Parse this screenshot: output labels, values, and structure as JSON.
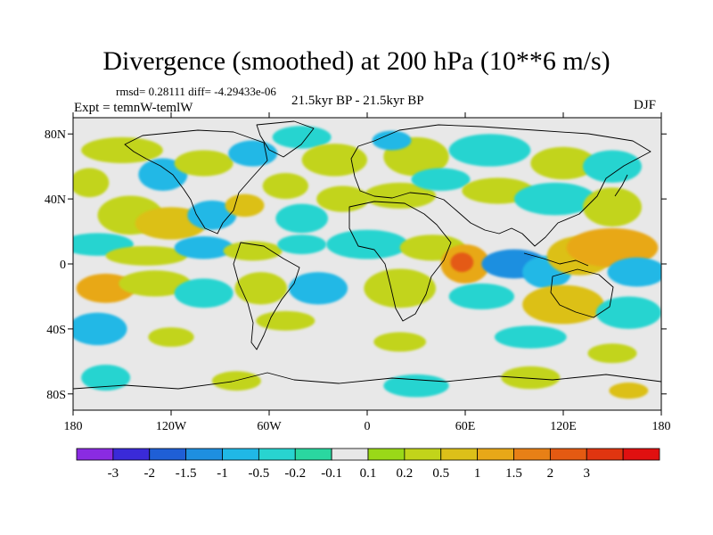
{
  "title": "Divergence (smoothed) at 200 hPa (10**6 m/s)",
  "stats": "rmsd= 0.28111 diff= -4.29433e-06",
  "expt": "Expt = temnW-temlW",
  "period": "21.5kyr BP - 21.5kyr BP",
  "season": "DJF",
  "lat_ticks": [
    {
      "lat": 80,
      "label": "80N"
    },
    {
      "lat": 40,
      "label": "40N"
    },
    {
      "lat": 0,
      "label": "0"
    },
    {
      "lat": -40,
      "label": "40S"
    },
    {
      "lat": -80,
      "label": "80S"
    }
  ],
  "lon_ticks": [
    {
      "lon": -180,
      "label": "180"
    },
    {
      "lon": -120,
      "label": "120W"
    },
    {
      "lon": -60,
      "label": "60W"
    },
    {
      "lon": 0,
      "label": "0"
    },
    {
      "lon": 60,
      "label": "60E"
    },
    {
      "lon": 120,
      "label": "120E"
    },
    {
      "lon": 180,
      "label": "180"
    }
  ],
  "colorbar": {
    "colors": [
      "#8a2be2",
      "#3a2ad8",
      "#1f5fd6",
      "#1e8fe0",
      "#20b8e6",
      "#28d4d0",
      "#2ad7a0",
      "#e8e8e8",
      "#9ad818",
      "#c2d41a",
      "#dcc019",
      "#e8a818",
      "#e88016",
      "#e45a12",
      "#e03510",
      "#e01010"
    ],
    "labels": [
      "-3",
      "-2",
      "-1.5",
      "-1",
      "-0.5",
      "-0.2",
      "-0.1",
      "0.1",
      "0.2",
      "0.5",
      "1",
      "1.5",
      "2",
      "3"
    ]
  },
  "field_blobs": [
    {
      "lon": -150,
      "lat": 70,
      "rx": 25,
      "ry": 8,
      "c": 9
    },
    {
      "lon": -125,
      "lat": 55,
      "rx": 15,
      "ry": 10,
      "c": 4
    },
    {
      "lon": -100,
      "lat": 62,
      "rx": 18,
      "ry": 8,
      "c": 9
    },
    {
      "lon": -70,
      "lat": 68,
      "rx": 15,
      "ry": 8,
      "c": 4
    },
    {
      "lon": -40,
      "lat": 78,
      "rx": 18,
      "ry": 7,
      "c": 5
    },
    {
      "lon": -20,
      "lat": 64,
      "rx": 20,
      "ry": 10,
      "c": 9
    },
    {
      "lon": 30,
      "lat": 66,
      "rx": 20,
      "ry": 12,
      "c": 9
    },
    {
      "lon": 15,
      "lat": 76,
      "rx": 12,
      "ry": 6,
      "c": 4
    },
    {
      "lon": 75,
      "lat": 70,
      "rx": 25,
      "ry": 10,
      "c": 5
    },
    {
      "lon": 120,
      "lat": 62,
      "rx": 20,
      "ry": 10,
      "c": 9
    },
    {
      "lon": 150,
      "lat": 60,
      "rx": 18,
      "ry": 10,
      "c": 5
    },
    {
      "lon": -170,
      "lat": 50,
      "rx": 12,
      "ry": 9,
      "c": 9
    },
    {
      "lon": -145,
      "lat": 30,
      "rx": 20,
      "ry": 12,
      "c": 9
    },
    {
      "lon": -120,
      "lat": 25,
      "rx": 22,
      "ry": 10,
      "c": 10
    },
    {
      "lon": -95,
      "lat": 30,
      "rx": 15,
      "ry": 9,
      "c": 4
    },
    {
      "lon": -75,
      "lat": 36,
      "rx": 12,
      "ry": 7,
      "c": 10
    },
    {
      "lon": -50,
      "lat": 48,
      "rx": 14,
      "ry": 8,
      "c": 9
    },
    {
      "lon": -40,
      "lat": 28,
      "rx": 16,
      "ry": 9,
      "c": 5
    },
    {
      "lon": -15,
      "lat": 40,
      "rx": 16,
      "ry": 8,
      "c": 9
    },
    {
      "lon": 20,
      "lat": 42,
      "rx": 22,
      "ry": 8,
      "c": 9
    },
    {
      "lon": 45,
      "lat": 52,
      "rx": 18,
      "ry": 7,
      "c": 5
    },
    {
      "lon": 80,
      "lat": 45,
      "rx": 22,
      "ry": 8,
      "c": 9
    },
    {
      "lon": 115,
      "lat": 40,
      "rx": 25,
      "ry": 10,
      "c": 5
    },
    {
      "lon": 150,
      "lat": 35,
      "rx": 18,
      "ry": 12,
      "c": 9
    },
    {
      "lon": -165,
      "lat": 12,
      "rx": 22,
      "ry": 7,
      "c": 5
    },
    {
      "lon": -135,
      "lat": 5,
      "rx": 25,
      "ry": 6,
      "c": 9
    },
    {
      "lon": -100,
      "lat": 10,
      "rx": 18,
      "ry": 7,
      "c": 4
    },
    {
      "lon": -70,
      "lat": 8,
      "rx": 18,
      "ry": 6,
      "c": 9
    },
    {
      "lon": -40,
      "lat": 12,
      "rx": 15,
      "ry": 6,
      "c": 5
    },
    {
      "lon": 0,
      "lat": 12,
      "rx": 25,
      "ry": 9,
      "c": 5
    },
    {
      "lon": 40,
      "lat": 10,
      "rx": 20,
      "ry": 8,
      "c": 9
    },
    {
      "lon": 60,
      "lat": 0,
      "rx": 15,
      "ry": 12,
      "c": 11
    },
    {
      "lon": 58,
      "lat": 1,
      "rx": 7,
      "ry": 6,
      "c": 13
    },
    {
      "lon": 90,
      "lat": 0,
      "rx": 20,
      "ry": 9,
      "c": 3
    },
    {
      "lon": 110,
      "lat": -5,
      "rx": 15,
      "ry": 10,
      "c": 4
    },
    {
      "lon": 130,
      "lat": 5,
      "rx": 20,
      "ry": 12,
      "c": 10
    },
    {
      "lon": 150,
      "lat": 10,
      "rx": 28,
      "ry": 12,
      "c": 11
    },
    {
      "lon": 165,
      "lat": -5,
      "rx": 18,
      "ry": 9,
      "c": 4
    },
    {
      "lon": -160,
      "lat": -15,
      "rx": 18,
      "ry": 9,
      "c": 11
    },
    {
      "lon": -130,
      "lat": -12,
      "rx": 22,
      "ry": 8,
      "c": 9
    },
    {
      "lon": -100,
      "lat": -18,
      "rx": 18,
      "ry": 9,
      "c": 5
    },
    {
      "lon": -65,
      "lat": -15,
      "rx": 16,
      "ry": 10,
      "c": 9
    },
    {
      "lon": -30,
      "lat": -15,
      "rx": 18,
      "ry": 10,
      "c": 4
    },
    {
      "lon": 20,
      "lat": -15,
      "rx": 22,
      "ry": 12,
      "c": 9
    },
    {
      "lon": 70,
      "lat": -20,
      "rx": 20,
      "ry": 8,
      "c": 5
    },
    {
      "lon": 120,
      "lat": -25,
      "rx": 25,
      "ry": 12,
      "c": 10
    },
    {
      "lon": 160,
      "lat": -30,
      "rx": 20,
      "ry": 10,
      "c": 5
    },
    {
      "lon": -165,
      "lat": -40,
      "rx": 18,
      "ry": 10,
      "c": 4
    },
    {
      "lon": -120,
      "lat": -45,
      "rx": 14,
      "ry": 6,
      "c": 9
    },
    {
      "lon": -50,
      "lat": -35,
      "rx": 18,
      "ry": 6,
      "c": 9
    },
    {
      "lon": 20,
      "lat": -48,
      "rx": 16,
      "ry": 6,
      "c": 9
    },
    {
      "lon": 100,
      "lat": -45,
      "rx": 22,
      "ry": 7,
      "c": 5
    },
    {
      "lon": 150,
      "lat": -55,
      "rx": 15,
      "ry": 6,
      "c": 9
    },
    {
      "lon": -160,
      "lat": -70,
      "rx": 15,
      "ry": 8,
      "c": 5
    },
    {
      "lon": -80,
      "lat": -72,
      "rx": 15,
      "ry": 6,
      "c": 9
    },
    {
      "lon": 30,
      "lat": -75,
      "rx": 20,
      "ry": 7,
      "c": 5
    },
    {
      "lon": 100,
      "lat": -70,
      "rx": 18,
      "ry": 7,
      "c": 9
    },
    {
      "lon": 160,
      "lat": -78,
      "rx": 12,
      "ry": 5,
      "c": 10
    }
  ]
}
